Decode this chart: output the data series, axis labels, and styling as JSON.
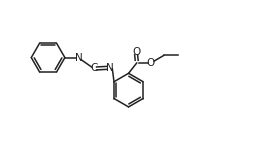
{
  "bg_color": "#ffffff",
  "line_color": "#222222",
  "lw": 1.1,
  "figsize": [
    2.75,
    1.45
  ],
  "dpi": 100,
  "xlim": [
    0,
    10
  ],
  "ylim": [
    0,
    5.3
  ]
}
